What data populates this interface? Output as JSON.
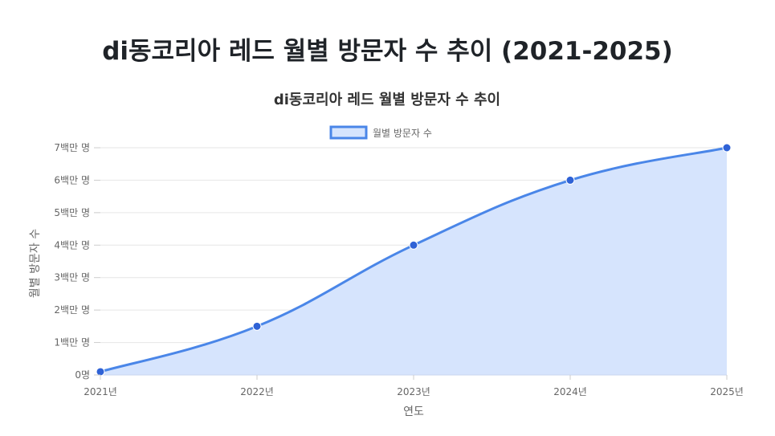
{
  "page": {
    "title": "di동코리아 레드 월별 방문자 수 추이 (2021-2025)"
  },
  "chart_data": {
    "type": "area",
    "title": "di동코리아 레드 월별 방문자 수 추이",
    "xlabel": "연도",
    "ylabel": "월별 방문자 수",
    "categories": [
      "2021년",
      "2022년",
      "2023년",
      "2024년",
      "2025년"
    ],
    "series": [
      {
        "name": "월별 방문자 수",
        "values": [
          100000,
          1500000,
          4000000,
          6000000,
          7000000
        ]
      }
    ],
    "ylim": [
      0,
      7000000
    ],
    "y_ticks": [
      {
        "value": 0,
        "label": "0명"
      },
      {
        "value": 1000000,
        "label": "1백만 명"
      },
      {
        "value": 2000000,
        "label": "2백만 명"
      },
      {
        "value": 3000000,
        "label": "3백만 명"
      },
      {
        "value": 4000000,
        "label": "4백만 명"
      },
      {
        "value": 5000000,
        "label": "5백만 명"
      },
      {
        "value": 6000000,
        "label": "6백만 명"
      },
      {
        "value": 7000000,
        "label": "7백만 명"
      }
    ],
    "legend_position": "top-center",
    "grid": true,
    "colors": {
      "line": "#4a86e8",
      "fill": "#d6e4fd",
      "point": "#2f62d6",
      "grid": "#e6e6e6"
    }
  }
}
